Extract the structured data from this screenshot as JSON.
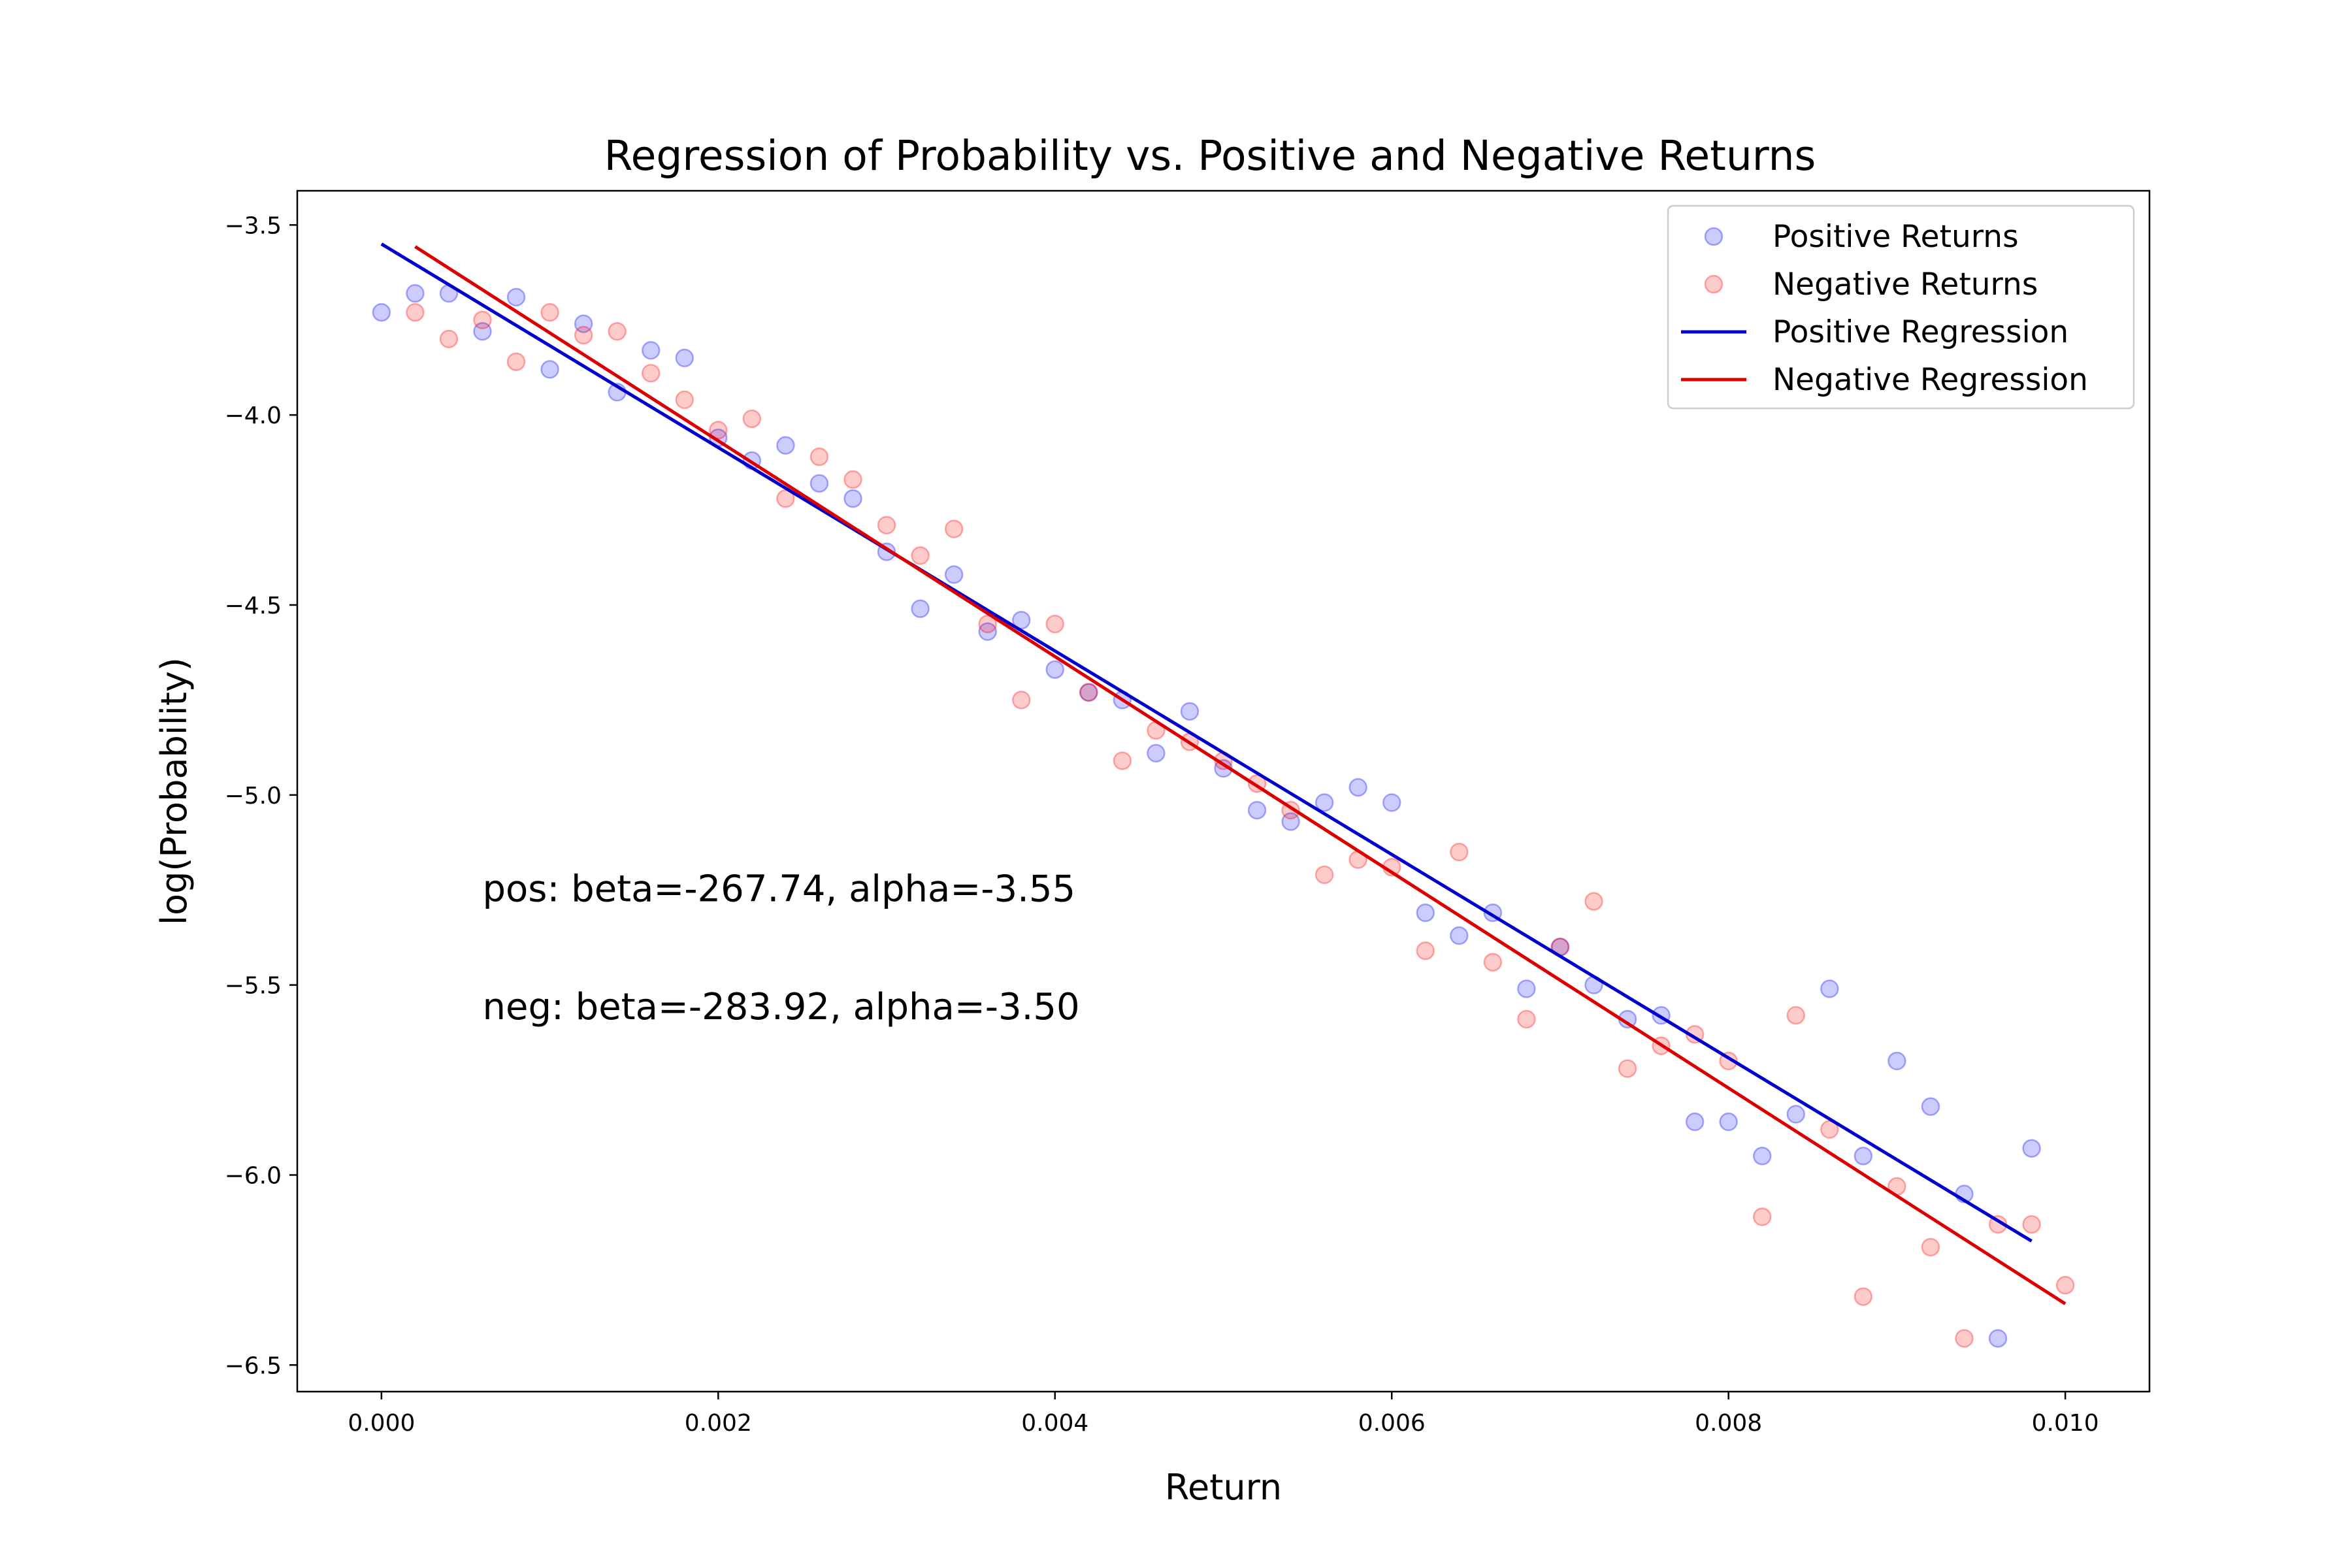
{
  "chart_data": {
    "type": "scatter",
    "title": "Regression of Probability vs. Positive and Negative Returns",
    "xlabel": "Return",
    "ylabel": "log(Probability)",
    "xlim": [
      -0.0005,
      0.0105
    ],
    "ylim": [
      -6.57,
      -3.41
    ],
    "xticks": [
      0.0,
      0.002,
      0.004,
      0.006,
      0.008,
      0.01
    ],
    "xtick_labels": [
      "0.000",
      "0.002",
      "0.004",
      "0.006",
      "0.008",
      "0.010"
    ],
    "yticks": [
      -3.5,
      -4.0,
      -4.5,
      -5.0,
      -5.5,
      -6.0,
      -6.5
    ],
    "ytick_labels": [
      "−3.5",
      "−4.0",
      "−4.5",
      "−5.0",
      "−5.5",
      "−6.0",
      "−6.5"
    ],
    "legend_position": "top-right",
    "series": [
      {
        "name": "Positive Returns",
        "kind": "scatter",
        "color": "#0000ff",
        "alpha": 0.2,
        "x": [
          0.0,
          0.0002,
          0.0004,
          0.0006,
          0.0008,
          0.001,
          0.0012,
          0.0014,
          0.0016,
          0.0018,
          0.002,
          0.0022,
          0.0024,
          0.0026,
          0.0028,
          0.003,
          0.0032,
          0.0034,
          0.0036,
          0.0038,
          0.004,
          0.0042,
          0.0044,
          0.0046,
          0.0048,
          0.005,
          0.0052,
          0.0054,
          0.0056,
          0.0058,
          0.006,
          0.0062,
          0.0064,
          0.0066,
          0.0068,
          0.007,
          0.0072,
          0.0074,
          0.0076,
          0.0078,
          0.008,
          0.0082,
          0.0084,
          0.0086,
          0.0088,
          0.009,
          0.0092,
          0.0094,
          0.0096,
          0.0098
        ],
        "y": [
          -3.73,
          -3.68,
          -3.68,
          -3.78,
          -3.69,
          -3.88,
          -3.76,
          -3.94,
          -3.83,
          -3.85,
          -4.06,
          -4.12,
          -4.08,
          -4.18,
          -4.22,
          -4.36,
          -4.51,
          -4.42,
          -4.57,
          -4.54,
          -4.67,
          -4.73,
          -4.75,
          -4.89,
          -4.78,
          -4.93,
          -5.04,
          -5.07,
          -5.02,
          -4.98,
          -5.02,
          -5.31,
          -5.37,
          -5.31,
          -5.51,
          -5.4,
          -5.5,
          -5.59,
          -5.58,
          -5.86,
          -5.86,
          -5.95,
          -5.84,
          -5.51,
          -5.95,
          -5.7,
          -5.82,
          -6.05,
          -6.43,
          -5.93
        ]
      },
      {
        "name": "Negative Returns",
        "kind": "scatter",
        "color": "#ff0000",
        "alpha": 0.2,
        "x": [
          0.0002,
          0.0004,
          0.0006,
          0.0008,
          0.001,
          0.0012,
          0.0014,
          0.0016,
          0.0018,
          0.002,
          0.0022,
          0.0024,
          0.0026,
          0.0028,
          0.003,
          0.0032,
          0.0034,
          0.0036,
          0.0038,
          0.004,
          0.0042,
          0.0044,
          0.0046,
          0.0048,
          0.005,
          0.0052,
          0.0054,
          0.0056,
          0.0058,
          0.006,
          0.0062,
          0.0064,
          0.0066,
          0.0068,
          0.007,
          0.0072,
          0.0074,
          0.0076,
          0.0078,
          0.008,
          0.0082,
          0.0084,
          0.0086,
          0.0088,
          0.009,
          0.0092,
          0.0094,
          0.0096,
          0.0098,
          0.01
        ],
        "y": [
          -3.73,
          -3.8,
          -3.75,
          -3.86,
          -3.73,
          -3.79,
          -3.78,
          -3.89,
          -3.96,
          -4.04,
          -4.01,
          -4.22,
          -4.11,
          -4.17,
          -4.29,
          -4.37,
          -4.3,
          -4.55,
          -4.75,
          -4.55,
          -4.73,
          -4.91,
          -4.83,
          -4.86,
          -4.91,
          -4.97,
          -5.04,
          -5.21,
          -5.17,
          -5.19,
          -5.41,
          -5.15,
          -5.44,
          -5.59,
          -5.4,
          -5.28,
          -5.72,
          -5.66,
          -5.63,
          -5.7,
          -6.11,
          -5.58,
          -5.88,
          -6.32,
          -6.03,
          -6.19,
          -6.43,
          -6.13,
          -6.13,
          -6.29
        ]
      },
      {
        "name": "Positive Regression",
        "kind": "line",
        "color": "#0000cc",
        "x": [
          0.0,
          0.0098
        ],
        "y": [
          -3.55,
          -6.174
        ]
      },
      {
        "name": "Negative Regression",
        "kind": "line",
        "color": "#dd0000",
        "x": [
          0.0002,
          0.01
        ],
        "y": [
          -3.557,
          -6.339
        ]
      }
    ],
    "annotations": [
      {
        "text": "pos: beta=-267.74, alpha=-3.55",
        "x": 0.0006,
        "y": -5.28
      },
      {
        "text": "neg: beta=-283.92, alpha=-3.50",
        "x": 0.0006,
        "y": -5.59
      }
    ]
  }
}
